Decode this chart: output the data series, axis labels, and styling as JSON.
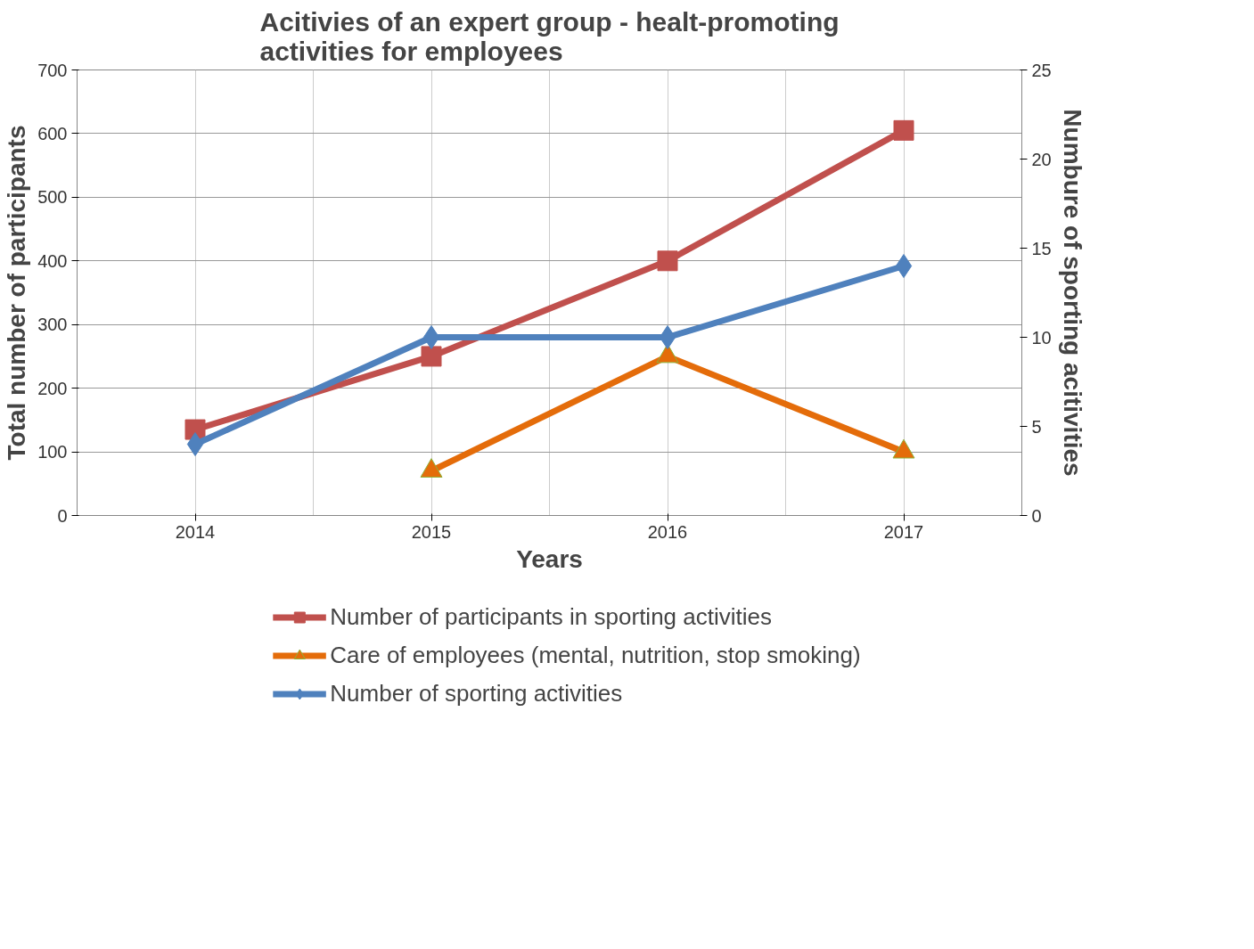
{
  "chart_data": {
    "type": "line",
    "title": "Acitivies of an expert group - healt-promoting activities for employees",
    "xlabel": "Years",
    "ylabel": "Total number of participants",
    "y2label": "Numbure of sporting acitivities",
    "categories": [
      "2014",
      "2015",
      "2016",
      "2017"
    ],
    "series": [
      {
        "name": "Number of participants in sporting activities",
        "color": "#c0504d",
        "marker": "square",
        "values": [
          135,
          250,
          400,
          605
        ]
      },
      {
        "name": "Care of employees (mental, nutrition, stop smoking)",
        "color": "#e46c0a",
        "marker": "triangle",
        "values": [
          null,
          70,
          250,
          100
        ]
      },
      {
        "name": "Number of sporting activities",
        "color": "#4f81bd",
        "marker": "diamond",
        "axis": "y2",
        "values": [
          4,
          10,
          10,
          14
        ]
      }
    ],
    "ylim": [
      0,
      700
    ],
    "yticks": [
      0,
      100,
      200,
      300,
      400,
      500,
      600,
      700
    ],
    "y2lim": [
      0,
      25
    ],
    "y2ticks": [
      0,
      5,
      10,
      15,
      20,
      25
    ],
    "grid": true,
    "legend": "bottom",
    "line_style": "solid"
  }
}
